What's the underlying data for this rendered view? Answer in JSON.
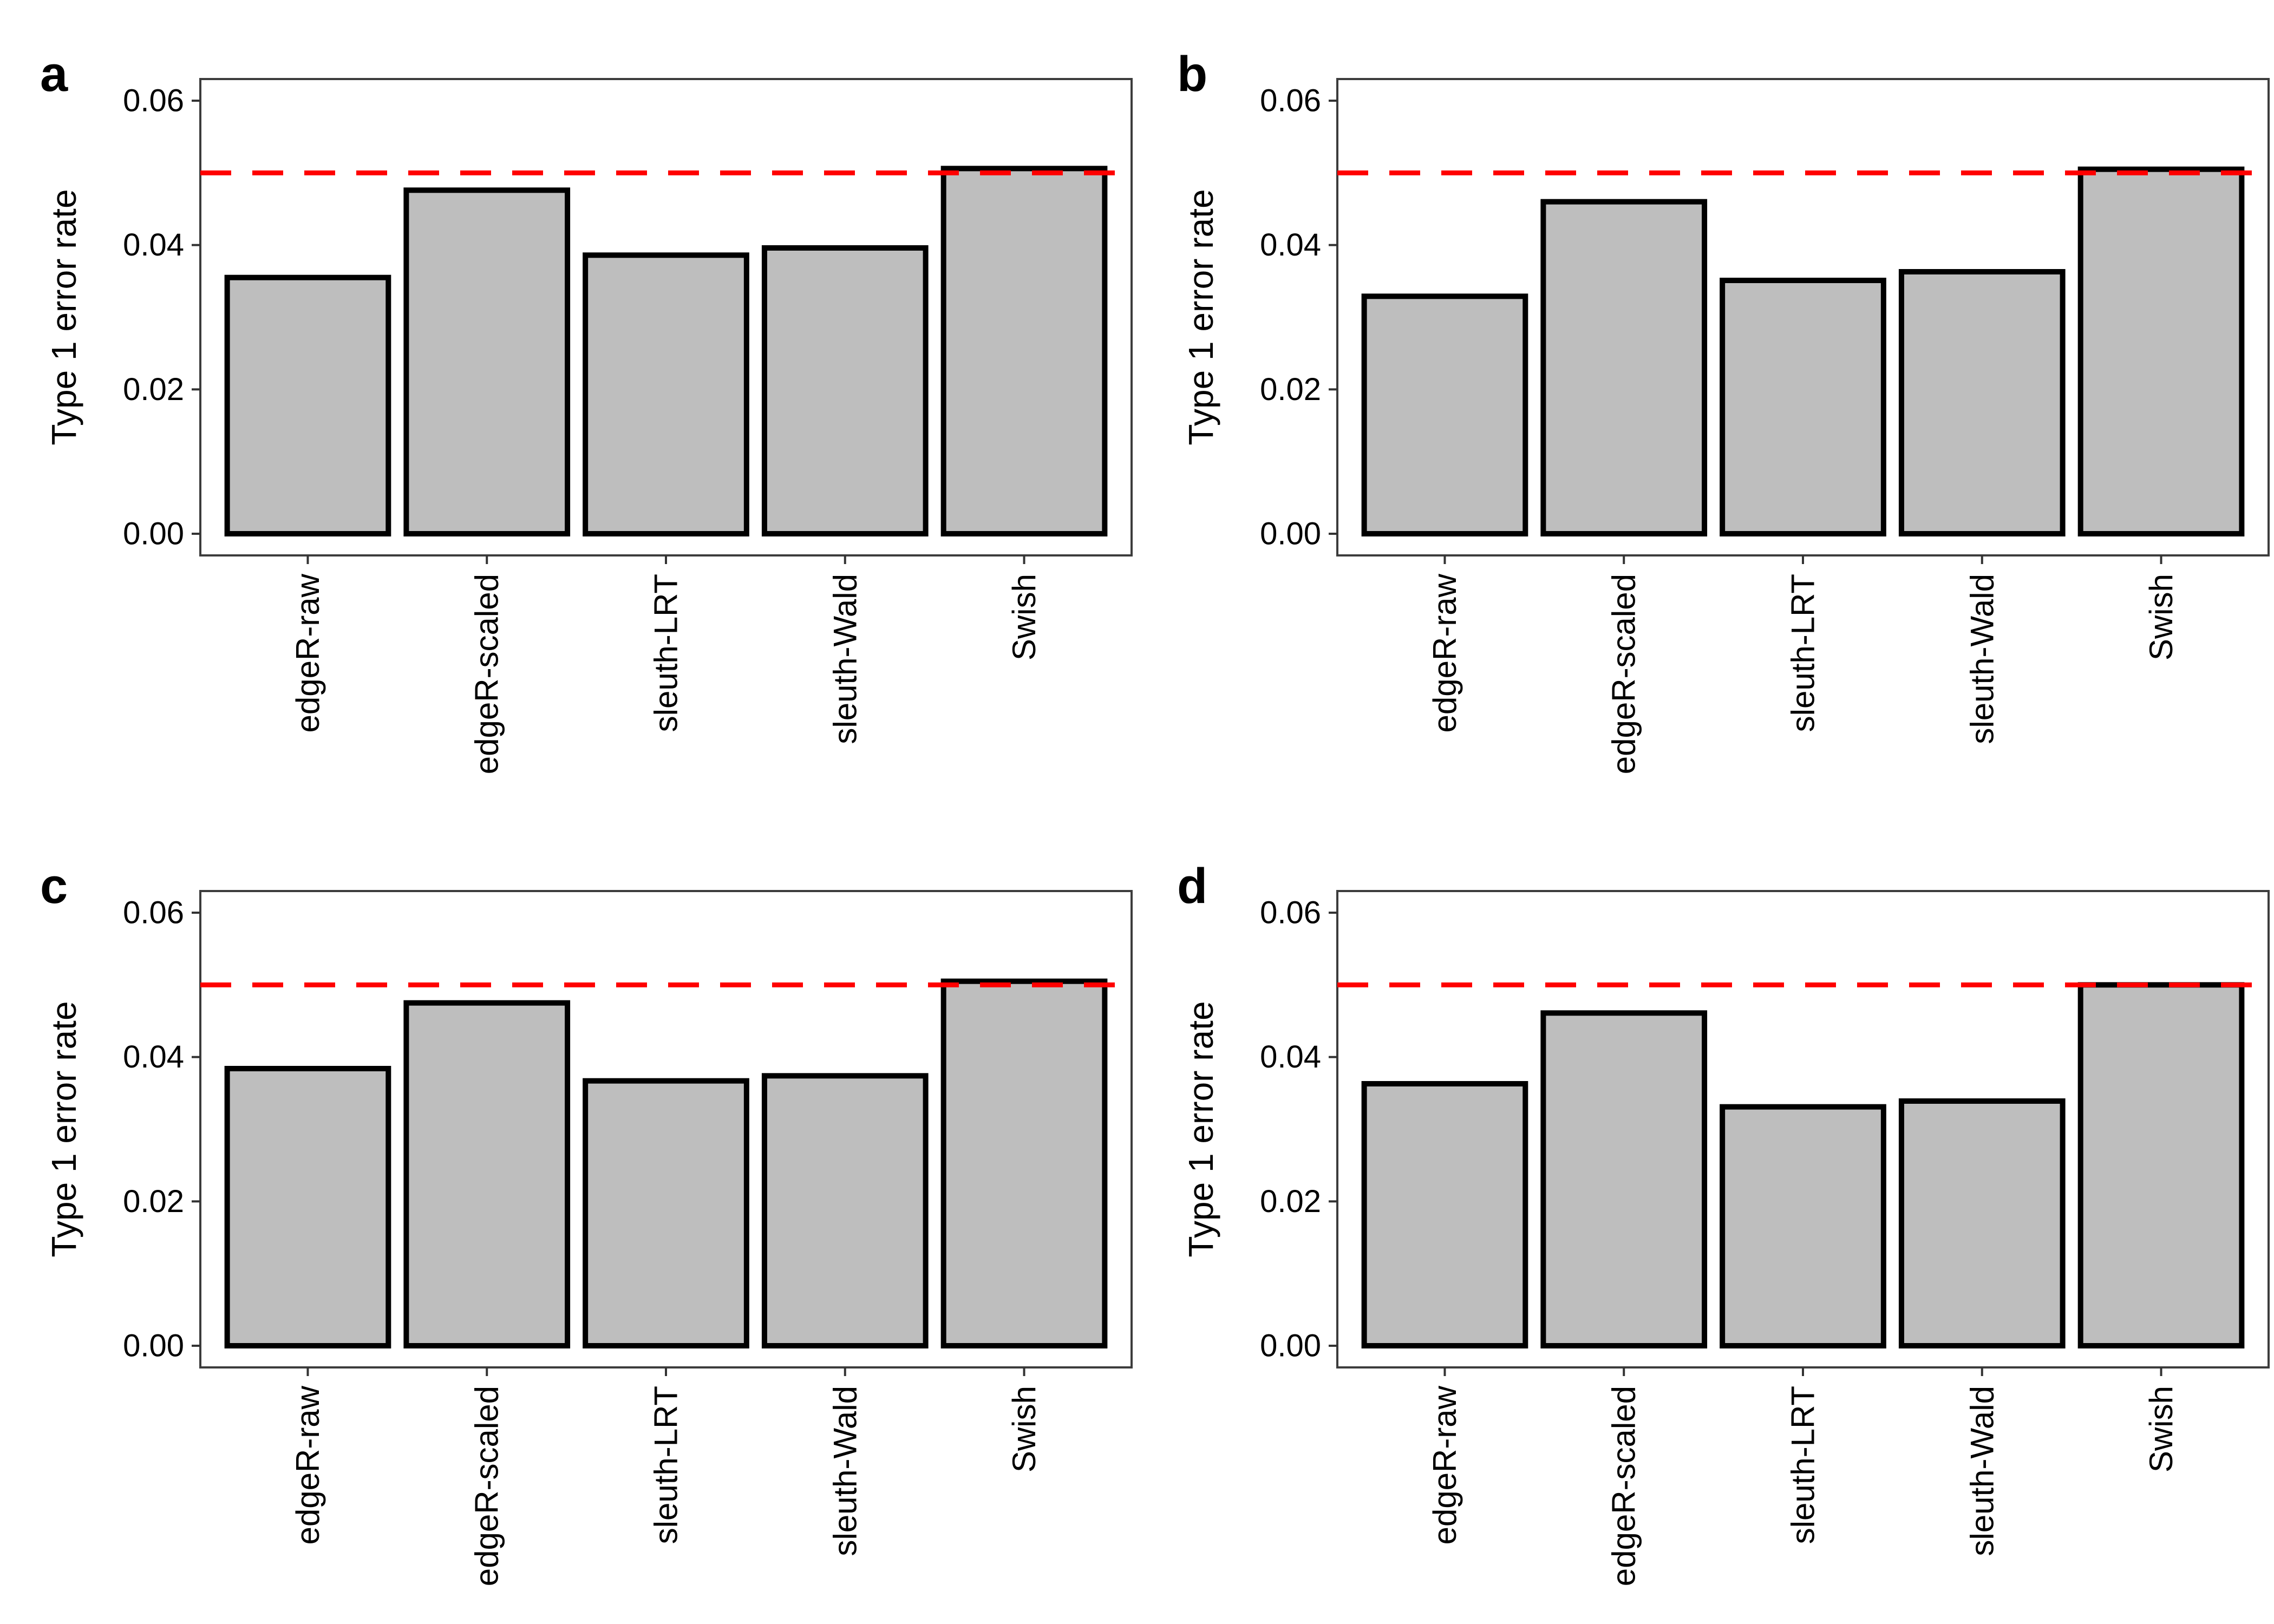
{
  "figure": {
    "background": "#ffffff",
    "panel_labels": [
      "a",
      "b",
      "c",
      "d"
    ]
  },
  "colors": {
    "bar_fill": "#bebebe",
    "bar_stroke": "#000000",
    "reference_line": "#ff0000",
    "panel_border": "#3c3c3c",
    "tick_mark": "#333333",
    "axis_text": "#000000"
  },
  "chart_data": [
    {
      "type": "bar",
      "panel_label": "a",
      "categories": [
        "edgeR-raw",
        "edgeR-scaled",
        "sleuth-LRT",
        "sleuth-Wald",
        "Swish"
      ],
      "values": [
        0.0355,
        0.0476,
        0.0386,
        0.0396,
        0.0506
      ],
      "title": "",
      "xlabel": "",
      "ylabel": "Type 1 error rate",
      "ylim": [
        0,
        0.06
      ],
      "ytick_values": [
        0,
        0.02,
        0.04,
        0.06
      ],
      "ytick_labels": [
        "0.00",
        "0.02",
        "0.04",
        "0.06"
      ],
      "reference_line_y": 0.05,
      "reference_line_style": "dashed",
      "grid": false,
      "legend": false
    },
    {
      "type": "bar",
      "panel_label": "b",
      "categories": [
        "edgeR-raw",
        "edgeR-scaled",
        "sleuth-LRT",
        "sleuth-Wald",
        "Swish"
      ],
      "values": [
        0.0329,
        0.046,
        0.0351,
        0.0363,
        0.0505
      ],
      "title": "",
      "xlabel": "",
      "ylabel": "Type 1 error rate",
      "ylim": [
        0,
        0.06
      ],
      "ytick_values": [
        0,
        0.02,
        0.04,
        0.06
      ],
      "ytick_labels": [
        "0.00",
        "0.02",
        "0.04",
        "0.06"
      ],
      "reference_line_y": 0.05,
      "reference_line_style": "dashed",
      "grid": false,
      "legend": false
    },
    {
      "type": "bar",
      "panel_label": "c",
      "categories": [
        "edgeR-raw",
        "edgeR-scaled",
        "sleuth-LRT",
        "sleuth-Wald",
        "Swish"
      ],
      "values": [
        0.0384,
        0.0475,
        0.0367,
        0.0374,
        0.0505
      ],
      "title": "",
      "xlabel": "",
      "ylabel": "Type 1 error rate",
      "ylim": [
        0,
        0.06
      ],
      "ytick_values": [
        0,
        0.02,
        0.04,
        0.06
      ],
      "ytick_labels": [
        "0.00",
        "0.02",
        "0.04",
        "0.06"
      ],
      "reference_line_y": 0.05,
      "reference_line_style": "dashed",
      "grid": false,
      "legend": false
    },
    {
      "type": "bar",
      "panel_label": "d",
      "categories": [
        "edgeR-raw",
        "edgeR-scaled",
        "sleuth-LRT",
        "sleuth-Wald",
        "Swish"
      ],
      "values": [
        0.0363,
        0.0461,
        0.0331,
        0.0339,
        0.05
      ],
      "title": "",
      "xlabel": "",
      "ylabel": "Type 1 error rate",
      "ylim": [
        0,
        0.06
      ],
      "ytick_values": [
        0,
        0.02,
        0.04,
        0.06
      ],
      "ytick_labels": [
        "0.00",
        "0.02",
        "0.04",
        "0.06"
      ],
      "reference_line_y": 0.05,
      "reference_line_style": "dashed",
      "grid": false,
      "legend": false
    }
  ]
}
